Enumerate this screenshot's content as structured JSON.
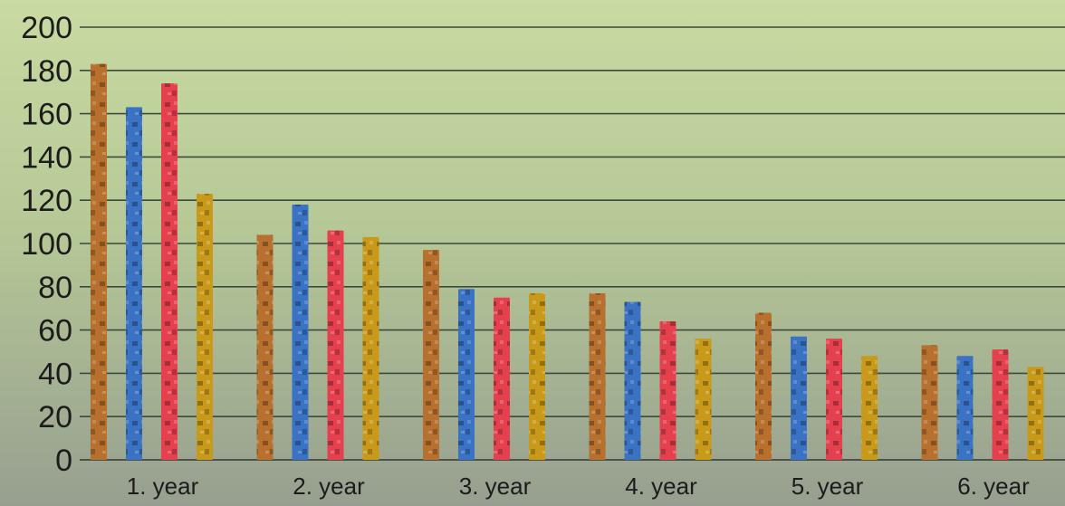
{
  "chart_data": {
    "type": "bar",
    "categories": [
      "1. year",
      "2. year",
      "3. year",
      "4. year",
      "5. year",
      "6. year"
    ],
    "series": [
      {
        "color": "#b8702e",
        "values": [
          183,
          104,
          97,
          77,
          68,
          53
        ]
      },
      {
        "color": "#3a72c4",
        "values": [
          163,
          118,
          79,
          73,
          57,
          48
        ]
      },
      {
        "color": "#e4404e",
        "values": [
          174,
          106,
          75,
          64,
          56,
          51
        ]
      },
      {
        "color": "#c99a1a",
        "values": [
          123,
          103,
          77,
          56,
          48,
          43
        ]
      }
    ],
    "yticks": [
      0,
      20,
      40,
      60,
      80,
      100,
      120,
      140,
      160,
      180,
      200
    ],
    "ylim": [
      0,
      200
    ],
    "grid": true,
    "legend": "none"
  }
}
